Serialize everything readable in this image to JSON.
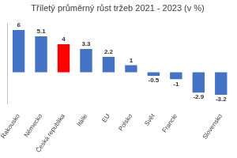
{
  "chart_data": {
    "type": "bar",
    "title": "Tříletý průměrný růst tržeb 2021 - 2023 (v %)",
    "categories": [
      "Rakousko",
      "Německo",
      "Česká republika",
      "Itálie",
      "EU",
      "Polsko",
      "Svět",
      "Francie",
      null,
      "Slovensko"
    ],
    "values": [
      6,
      5.1,
      4,
      3.3,
      2.2,
      1,
      -0.5,
      -1,
      -2.9,
      -3.2
    ],
    "colors": [
      "#4472c4",
      "#4472c4",
      "#ff0000",
      "#4472c4",
      "#4472c4",
      "#4472c4",
      "#4472c4",
      "#4472c4",
      "#4472c4",
      "#4472c4"
    ],
    "ylim": [
      -4.5,
      7
    ],
    "grid": false,
    "data_labels": true,
    "tick_labels": "x"
  }
}
